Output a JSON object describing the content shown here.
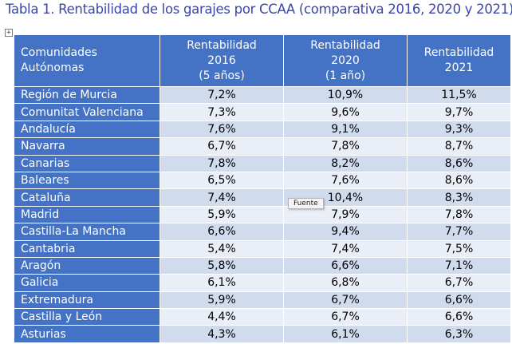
{
  "title": "Tabla 1. Rentabilidad de los garajes por CCAA (comparativa 2016, 2020 y 2021)",
  "move_handle_glyph": "+",
  "table": {
    "headers": [
      [
        "Comunidades",
        "Autónomas"
      ],
      [
        "Rentabilidad",
        "2016",
        "(5 años)"
      ],
      [
        "Rentabilidad",
        "2020",
        "(1 año)"
      ],
      [
        "Rentabilidad",
        "2021"
      ]
    ],
    "rows": [
      [
        "Región de Murcia",
        "7,2%",
        "10,9%",
        "11,5%"
      ],
      [
        "Comunitat Valenciana",
        "7,3%",
        "9,6%",
        "9,7%"
      ],
      [
        "Andalucía",
        "7,6%",
        "9,1%",
        "9,3%"
      ],
      [
        "Navarra",
        "6,7%",
        "7,8%",
        "8,7%"
      ],
      [
        "Canarias",
        "7,8%",
        "8,2%",
        "8,6%"
      ],
      [
        "Baleares",
        "6,5%",
        "7,6%",
        "8,6%"
      ],
      [
        "Cataluña",
        "7,4%",
        "10,4%",
        "8,3%"
      ],
      [
        "Madrid",
        "5,9%",
        "7,9%",
        "7,8%"
      ],
      [
        "Castilla-La Mancha",
        "6,6%",
        "9,4%",
        "7,7%"
      ],
      [
        "Cantabria",
        "5,4%",
        "7,4%",
        "7,5%"
      ],
      [
        "Aragón",
        "5,8%",
        "6,6%",
        "7,1%"
      ],
      [
        "Galicia",
        "6,1%",
        "6,8%",
        "6,7%"
      ],
      [
        "Extremadura",
        "5,9%",
        "6,7%",
        "6,6%"
      ],
      [
        "Castilla y León",
        "4,4%",
        "6,7%",
        "6,6%"
      ],
      [
        "Asturias",
        "4,3%",
        "6,1%",
        "6,3%"
      ]
    ]
  },
  "tooltip": "Fuente",
  "colors": {
    "title": "#3a46a8",
    "header_bg": "#4472c4",
    "row_dark": "#d0dbee",
    "row_light": "#e9eef7"
  }
}
